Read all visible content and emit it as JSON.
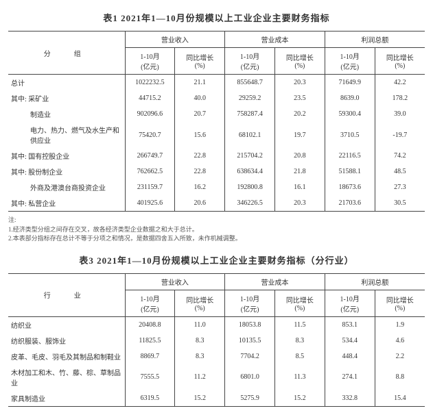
{
  "colors": {
    "text": "#333333",
    "border": "#444444",
    "bg": "#ffffff"
  },
  "typography": {
    "title_size_pt": 13,
    "body_size_pt": 10,
    "family": "SimSun"
  },
  "table1": {
    "title": "表1 2021年1—10月份规模以上工业企业主要财务指标",
    "row_header": "分　组",
    "groups": [
      "营业收入",
      "营业成本",
      "利润总额"
    ],
    "subheaders": [
      "1-10月\n(亿元)",
      "同比增长\n(%)"
    ],
    "rows": [
      {
        "label": "总计",
        "indent": 0,
        "v": [
          "1022232.5",
          "21.1",
          "855648.7",
          "20.3",
          "71649.9",
          "42.2"
        ]
      },
      {
        "label": "其中: 采矿业",
        "indent": 0,
        "v": [
          "44715.2",
          "40.0",
          "29259.2",
          "23.5",
          "8639.0",
          "178.2"
        ]
      },
      {
        "label": "制造业",
        "indent": 2,
        "v": [
          "902096.6",
          "20.7",
          "758287.4",
          "20.2",
          "59300.4",
          "39.0"
        ]
      },
      {
        "label": "电力、热力、燃气及水生产和供应业",
        "indent": 2,
        "v": [
          "75420.7",
          "15.6",
          "68102.1",
          "19.7",
          "3710.5",
          "-19.7"
        ]
      },
      {
        "label": "其中: 国有控股企业",
        "indent": 0,
        "v": [
          "266749.7",
          "22.8",
          "215704.2",
          "20.8",
          "22116.5",
          "74.2"
        ]
      },
      {
        "label": "其中: 股份制企业",
        "indent": 0,
        "v": [
          "762662.5",
          "22.8",
          "638634.4",
          "21.8",
          "51588.1",
          "48.5"
        ]
      },
      {
        "label": "外商及港澳台商投资企业",
        "indent": 2,
        "v": [
          "231159.7",
          "16.2",
          "192800.8",
          "16.1",
          "18673.6",
          "27.3"
        ]
      },
      {
        "label": "其中: 私营企业",
        "indent": 0,
        "v": [
          "401925.6",
          "20.6",
          "346226.5",
          "20.3",
          "21703.6",
          "30.5"
        ]
      }
    ],
    "notes_label": "注:",
    "notes": [
      "1.经济类型分组之间存在交叉，故各经济类型企业数据之和大于总计。",
      "2.本表部分指标存在总计不等于分项之和情况，是数据四舍五入所致，未作机械调整。"
    ]
  },
  "table3": {
    "title": "表3 2021年1—10月份规模以上工业企业主要财务指标（分行业）",
    "row_header": "行　业",
    "groups": [
      "营业收入",
      "营业成本",
      "利润总额"
    ],
    "subheaders": [
      "1-10月\n(亿元)",
      "同比增长\n(%)"
    ],
    "rows": [
      {
        "label": "纺织业",
        "v": [
          "20408.8",
          "11.0",
          "18053.8",
          "11.5",
          "853.1",
          "1.9"
        ]
      },
      {
        "label": "纺织服装、服饰业",
        "v": [
          "11825.5",
          "8.3",
          "10135.5",
          "8.3",
          "534.4",
          "4.6"
        ]
      },
      {
        "label": "皮革、毛皮、羽毛及其制品和制鞋业",
        "v": [
          "8869.7",
          "8.3",
          "7704.2",
          "8.5",
          "448.4",
          "2.2"
        ]
      },
      {
        "label": "木材加工和木、竹、藤、棕、草制品业",
        "v": [
          "7555.5",
          "11.2",
          "6801.0",
          "11.3",
          "274.1",
          "8.8"
        ]
      },
      {
        "label": "家具制造业",
        "v": [
          "6319.5",
          "15.2",
          "5275.9",
          "15.2",
          "332.8",
          "15.4"
        ]
      }
    ]
  }
}
